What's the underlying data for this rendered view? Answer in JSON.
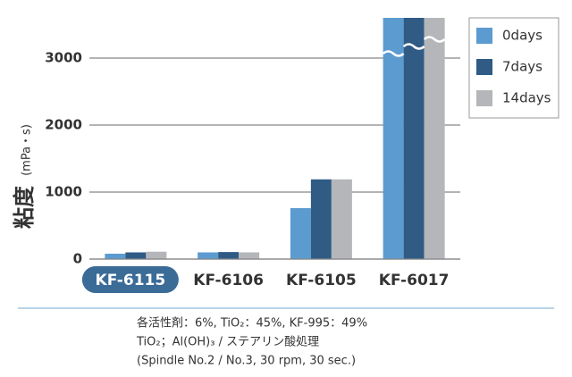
{
  "chart_data": {
    "type": "bar",
    "y_label": "粘度",
    "y_unit": "(mPa・s)",
    "categories": [
      "KF-6115",
      "KF-6106",
      "KF-6105",
      "KF-6017"
    ],
    "series": [
      {
        "name": "0days",
        "color": "#5b9bd0",
        "values": [
          80,
          100,
          760,
          3600
        ]
      },
      {
        "name": "7days",
        "color": "#2f5b85",
        "values": [
          100,
          105,
          1190,
          3600
        ]
      },
      {
        "name": "14days",
        "color": "#b4b6b9",
        "values": [
          110,
          100,
          1190,
          3600
        ]
      }
    ],
    "ylim": [
      0,
      3600
    ],
    "yticks": [
      0,
      1000,
      2000,
      3000
    ],
    "grid": true,
    "legend": "upper right",
    "highlight_index": 0,
    "highlight_color": "#3b6b97",
    "notes": [
      "各活性剤：6%, TiO₂：45%, KF-995：49%",
      "TiO₂；Al(OH)₃ / ステアリン酸処理",
      "(Spindle No.2 / No.3, 30 rpm, 30 sec.)"
    ]
  }
}
